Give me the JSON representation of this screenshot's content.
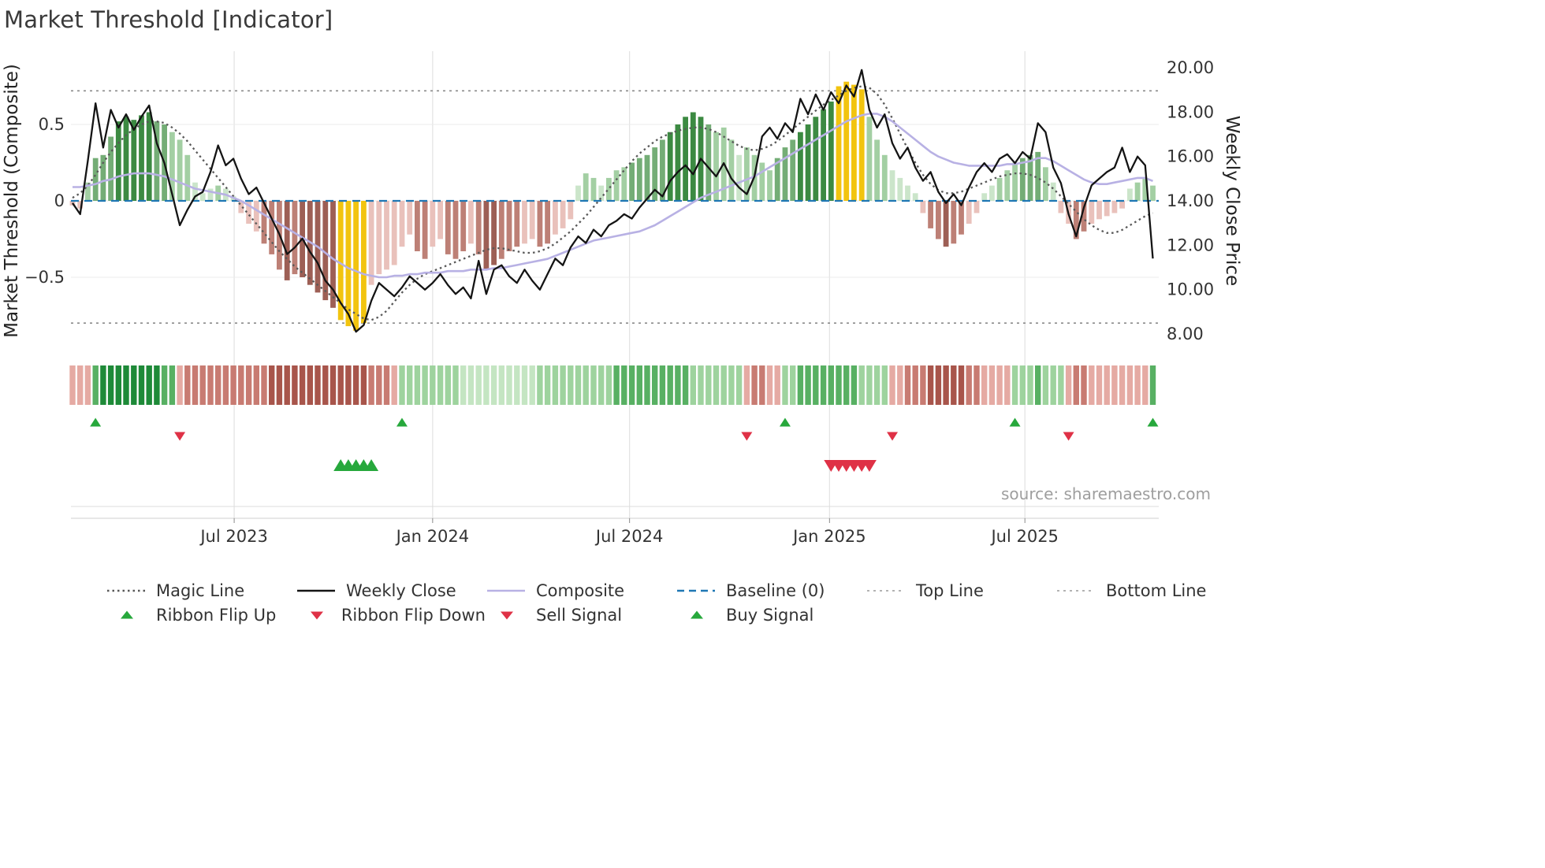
{
  "title": "Market Threshold [Indicator]",
  "source": "source: sharemaestro.com",
  "axes": {
    "left_label": "Market Threshold (Composite)",
    "right_label": "Weekly Close Price",
    "left_ticks": [
      0.5,
      0,
      -0.5
    ],
    "left_tick_labels": [
      "0.5",
      "0",
      "−0.5"
    ],
    "right_ticks": [
      20,
      18,
      16,
      14,
      12,
      10,
      8
    ],
    "right_tick_labels": [
      "20.00",
      "18.00",
      "16.00",
      "14.00",
      "12.00",
      "10.00",
      "8.00"
    ],
    "x_tick_labels": [
      "Jul 2023",
      "Jan 2024",
      "Jul 2024",
      "Jan 2025",
      "Jul 2025"
    ],
    "x_tick_weeks": [
      21.1,
      47,
      72.7,
      98.8,
      124.3
    ]
  },
  "colors": {
    "weekly_close": "#141414",
    "composite": "#b8b1e4",
    "magic_line": "#595959",
    "baseline": "#1f77b4",
    "top_bottom_line": "#8a8a8a",
    "grid": "#e2e2e2",
    "signal_green": "#27a83c",
    "signal_red": "#df3146",
    "bar_palette": {
      "dg": "#3c8a42",
      "mg": "#74ad76",
      "lg": "#a3cfa3",
      "pg": "#cbe5ca",
      "gd": "#f2c40f",
      "pp": "#e9c1bb",
      "mr": "#bd8076",
      "dr": "#9d5f55"
    },
    "ribbon_palette": {
      "dg": "#1e8a38",
      "mg": "#58b063",
      "lg": "#9ed39e",
      "pg": "#c4e5c2",
      "pp": "#e5aaa3",
      "mr": "#c87b72",
      "dr": "#a8554b"
    }
  },
  "chart_data": {
    "type": "combo: bar histogram (left axis) + line series + ribbon strip + signal markers",
    "n_points": 142,
    "x_unit": "weekly closes, Feb 2023 – Oct 2025",
    "left_axis_range": [
      -0.9,
      0.9
    ],
    "right_axis_range": [
      7.5,
      20.5
    ],
    "baseline": 0,
    "top_line": 0.72,
    "bottom_line": -0.8,
    "threshold_bars": {
      "name": "Market Threshold",
      "axis": "left",
      "values": [
        -0.03,
        -0.05,
        0.12,
        0.28,
        0.3,
        0.42,
        0.52,
        0.55,
        0.53,
        0.56,
        0.58,
        0.52,
        0.5,
        0.45,
        0.4,
        0.3,
        0.12,
        0.05,
        0.08,
        0.1,
        0.08,
        0.03,
        -0.08,
        -0.15,
        -0.2,
        -0.28,
        -0.35,
        -0.45,
        -0.52,
        -0.48,
        -0.5,
        -0.55,
        -0.6,
        -0.65,
        -0.7,
        -0.78,
        -0.82,
        -0.85,
        -0.8,
        -0.55,
        -0.48,
        -0.45,
        -0.42,
        -0.3,
        -0.22,
        -0.33,
        -0.38,
        -0.3,
        -0.25,
        -0.35,
        -0.38,
        -0.33,
        -0.28,
        -0.35,
        -0.45,
        -0.42,
        -0.38,
        -0.33,
        -0.3,
        -0.28,
        -0.25,
        -0.3,
        -0.28,
        -0.22,
        -0.18,
        -0.12,
        0.1,
        0.18,
        0.15,
        0.1,
        0.15,
        0.2,
        0.22,
        0.25,
        0.28,
        0.3,
        0.35,
        0.4,
        0.45,
        0.5,
        0.55,
        0.58,
        0.55,
        0.5,
        0.45,
        0.48,
        0.4,
        0.3,
        0.35,
        0.3,
        0.25,
        0.2,
        0.28,
        0.35,
        0.4,
        0.45,
        0.5,
        0.55,
        0.6,
        0.65,
        0.75,
        0.78,
        0.76,
        0.73,
        0.55,
        0.4,
        0.3,
        0.2,
        0.15,
        0.1,
        0.05,
        -0.08,
        -0.18,
        -0.25,
        -0.3,
        -0.28,
        -0.22,
        -0.15,
        -0.08,
        0.05,
        0.1,
        0.15,
        0.2,
        0.25,
        0.28,
        0.3,
        0.32,
        0.22,
        0.12,
        -0.08,
        -0.15,
        -0.25,
        -0.2,
        -0.15,
        -0.12,
        -0.1,
        -0.08,
        -0.05,
        0.08,
        0.12,
        0.15,
        0.1
      ],
      "colors": [
        "pp",
        "pp",
        "lg",
        "mg",
        "mg",
        "mg",
        "dg",
        "dg",
        "dg",
        "dg",
        "dg",
        "mg",
        "mg",
        "lg",
        "lg",
        "lg",
        "pg",
        "pg",
        "pg",
        "lg",
        "pg",
        "pg",
        "pp",
        "pp",
        "pp",
        "mr",
        "mr",
        "mr",
        "dr",
        "mr",
        "dr",
        "dr",
        "dr",
        "dr",
        "dr",
        "gd",
        "gd",
        "gd",
        "gd",
        "pp",
        "pp",
        "pp",
        "pp",
        "pp",
        "pp",
        "mr",
        "mr",
        "pp",
        "pp",
        "mr",
        "mr",
        "mr",
        "pp",
        "mr",
        "dr",
        "dr",
        "mr",
        "mr",
        "mr",
        "pp",
        "pp",
        "mr",
        "mr",
        "pp",
        "pp",
        "pp",
        "pg",
        "lg",
        "lg",
        "pg",
        "lg",
        "lg",
        "lg",
        "mg",
        "mg",
        "mg",
        "mg",
        "mg",
        "dg",
        "dg",
        "dg",
        "dg",
        "dg",
        "mg",
        "lg",
        "lg",
        "lg",
        "pg",
        "lg",
        "lg",
        "lg",
        "lg",
        "mg",
        "mg",
        "mg",
        "dg",
        "dg",
        "dg",
        "dg",
        "dg",
        "gd",
        "gd",
        "gd",
        "gd",
        "lg",
        "lg",
        "lg",
        "pg",
        "pg",
        "pg",
        "pg",
        "pp",
        "mr",
        "mr",
        "dr",
        "mr",
        "mr",
        "pp",
        "pp",
        "pg",
        "pg",
        "lg",
        "lg",
        "lg",
        "mg",
        "mg",
        "mg",
        "lg",
        "pg",
        "pp",
        "pp",
        "mr",
        "mr",
        "pp",
        "pp",
        "pp",
        "pp",
        "pp",
        "pg",
        "lg",
        "lg",
        "lg"
      ]
    },
    "weekly_close": {
      "name": "Weekly Close",
      "axis": "right",
      "values": [
        13.9,
        13.4,
        15.8,
        18.4,
        16.4,
        18.1,
        17.3,
        17.9,
        17.2,
        17.8,
        18.3,
        16.6,
        15.7,
        14.3,
        12.9,
        13.6,
        14.2,
        14.4,
        15.3,
        16.5,
        15.6,
        15.9,
        15.0,
        14.3,
        14.6,
        13.9,
        13.2,
        12.5,
        11.6,
        11.9,
        12.3,
        11.7,
        11.2,
        10.4,
        10.0,
        9.4,
        8.9,
        8.1,
        8.4,
        9.5,
        10.3,
        10.0,
        9.7,
        10.1,
        10.6,
        10.3,
        10.0,
        10.3,
        10.7,
        10.2,
        9.8,
        10.1,
        9.6,
        11.3,
        9.8,
        10.9,
        11.1,
        10.6,
        10.3,
        10.9,
        10.4,
        10.0,
        10.7,
        11.4,
        11.1,
        11.9,
        12.4,
        12.1,
        12.7,
        12.4,
        12.9,
        13.1,
        13.4,
        13.2,
        13.7,
        14.1,
        14.5,
        14.2,
        14.9,
        15.3,
        15.6,
        15.2,
        15.9,
        15.5,
        15.1,
        15.7,
        15.0,
        14.6,
        14.3,
        15.1,
        16.9,
        17.3,
        16.8,
        17.5,
        17.1,
        18.6,
        17.9,
        18.8,
        18.1,
        18.9,
        18.4,
        19.2,
        18.7,
        19.9,
        18.1,
        17.3,
        17.9,
        16.6,
        15.9,
        16.4,
        15.5,
        14.9,
        15.3,
        14.4,
        13.9,
        14.3,
        13.8,
        14.6,
        15.3,
        15.7,
        15.3,
        15.9,
        16.1,
        15.7,
        16.2,
        15.9,
        17.5,
        17.1,
        15.5,
        14.8,
        13.4,
        12.4,
        13.7,
        14.7,
        15.0,
        15.3,
        15.5,
        16.4,
        15.3,
        16.0,
        15.6,
        11.4
      ]
    },
    "composite": {
      "name": "Composite",
      "axis": "left",
      "values": [
        0.09,
        0.09,
        0.1,
        0.11,
        0.13,
        0.14,
        0.16,
        0.17,
        0.18,
        0.18,
        0.18,
        0.17,
        0.16,
        0.14,
        0.12,
        0.1,
        0.08,
        0.07,
        0.06,
        0.05,
        0.04,
        0.02,
        0.0,
        -0.03,
        -0.06,
        -0.09,
        -0.12,
        -0.15,
        -0.18,
        -0.21,
        -0.24,
        -0.27,
        -0.3,
        -0.34,
        -0.38,
        -0.41,
        -0.44,
        -0.46,
        -0.48,
        -0.49,
        -0.5,
        -0.5,
        -0.49,
        -0.49,
        -0.48,
        -0.48,
        -0.47,
        -0.47,
        -0.47,
        -0.46,
        -0.46,
        -0.46,
        -0.45,
        -0.45,
        -0.45,
        -0.44,
        -0.44,
        -0.43,
        -0.42,
        -0.41,
        -0.4,
        -0.39,
        -0.38,
        -0.36,
        -0.34,
        -0.32,
        -0.3,
        -0.28,
        -0.26,
        -0.25,
        -0.24,
        -0.23,
        -0.22,
        -0.21,
        -0.2,
        -0.18,
        -0.16,
        -0.13,
        -0.1,
        -0.07,
        -0.04,
        -0.01,
        0.02,
        0.04,
        0.06,
        0.08,
        0.1,
        0.12,
        0.14,
        0.16,
        0.19,
        0.22,
        0.25,
        0.28,
        0.31,
        0.34,
        0.37,
        0.4,
        0.43,
        0.46,
        0.49,
        0.52,
        0.54,
        0.56,
        0.57,
        0.57,
        0.55,
        0.52,
        0.48,
        0.44,
        0.4,
        0.36,
        0.32,
        0.29,
        0.27,
        0.25,
        0.24,
        0.23,
        0.23,
        0.23,
        0.23,
        0.23,
        0.24,
        0.24,
        0.25,
        0.26,
        0.28,
        0.28,
        0.26,
        0.23,
        0.2,
        0.17,
        0.14,
        0.12,
        0.11,
        0.11,
        0.12,
        0.13,
        0.14,
        0.15,
        0.15,
        0.13
      ]
    },
    "magic_line": {
      "name": "Magic Line",
      "axis": "left",
      "values": [
        0.02,
        0.05,
        0.1,
        0.17,
        0.25,
        0.32,
        0.38,
        0.43,
        0.47,
        0.5,
        0.52,
        0.52,
        0.51,
        0.48,
        0.44,
        0.39,
        0.33,
        0.27,
        0.21,
        0.15,
        0.09,
        0.03,
        -0.03,
        -0.09,
        -0.15,
        -0.21,
        -0.27,
        -0.33,
        -0.38,
        -0.43,
        -0.47,
        -0.51,
        -0.55,
        -0.59,
        -0.63,
        -0.67,
        -0.71,
        -0.74,
        -0.77,
        -0.78,
        -0.76,
        -0.72,
        -0.66,
        -0.6,
        -0.55,
        -0.51,
        -0.48,
        -0.46,
        -0.44,
        -0.42,
        -0.4,
        -0.38,
        -0.36,
        -0.34,
        -0.32,
        -0.31,
        -0.31,
        -0.32,
        -0.33,
        -0.34,
        -0.34,
        -0.33,
        -0.31,
        -0.28,
        -0.24,
        -0.2,
        -0.15,
        -0.1,
        -0.04,
        0.02,
        0.08,
        0.14,
        0.2,
        0.26,
        0.31,
        0.35,
        0.39,
        0.42,
        0.44,
        0.46,
        0.47,
        0.48,
        0.48,
        0.47,
        0.45,
        0.42,
        0.39,
        0.36,
        0.34,
        0.33,
        0.34,
        0.36,
        0.39,
        0.43,
        0.47,
        0.51,
        0.55,
        0.59,
        0.63,
        0.66,
        0.69,
        0.72,
        0.74,
        0.75,
        0.74,
        0.7,
        0.63,
        0.54,
        0.44,
        0.34,
        0.25,
        0.17,
        0.11,
        0.07,
        0.05,
        0.05,
        0.06,
        0.08,
        0.1,
        0.12,
        0.14,
        0.16,
        0.17,
        0.18,
        0.18,
        0.17,
        0.15,
        0.12,
        0.08,
        0.03,
        -0.02,
        -0.07,
        -0.12,
        -0.16,
        -0.19,
        -0.21,
        -0.21,
        -0.19,
        -0.16,
        -0.13,
        -0.1,
        -0.08
      ]
    },
    "ribbon": [
      "pp",
      "pp",
      "pp",
      "mg",
      "dg",
      "dg",
      "dg",
      "dg",
      "dg",
      "dg",
      "dg",
      "dg",
      "mg",
      "mg",
      "pp",
      "mr",
      "mr",
      "mr",
      "mr",
      "mr",
      "mr",
      "mr",
      "mr",
      "mr",
      "mr",
      "mr",
      "dr",
      "dr",
      "dr",
      "dr",
      "dr",
      "dr",
      "dr",
      "dr",
      "dr",
      "dr",
      "dr",
      "dr",
      "dr",
      "mr",
      "mr",
      "mr",
      "pp",
      "lg",
      "lg",
      "lg",
      "lg",
      "lg",
      "lg",
      "lg",
      "lg",
      "pg",
      "pg",
      "pg",
      "pg",
      "pg",
      "pg",
      "pg",
      "pg",
      "pg",
      "pg",
      "lg",
      "lg",
      "lg",
      "lg",
      "lg",
      "lg",
      "lg",
      "lg",
      "lg",
      "lg",
      "mg",
      "mg",
      "mg",
      "mg",
      "mg",
      "mg",
      "mg",
      "mg",
      "mg",
      "mg",
      "lg",
      "lg",
      "lg",
      "lg",
      "lg",
      "lg",
      "lg",
      "pp",
      "mr",
      "mr",
      "pp",
      "pp",
      "lg",
      "lg",
      "mg",
      "mg",
      "mg",
      "mg",
      "mg",
      "mg",
      "mg",
      "mg",
      "lg",
      "lg",
      "lg",
      "lg",
      "pp",
      "pp",
      "mr",
      "mr",
      "mr",
      "dr",
      "dr",
      "dr",
      "dr",
      "dr",
      "mr",
      "mr",
      "pp",
      "pp",
      "pp",
      "pp",
      "lg",
      "lg",
      "lg",
      "mg",
      "lg",
      "lg",
      "lg",
      "pp",
      "mr",
      "mr",
      "pp",
      "pp",
      "pp",
      "pp",
      "pp",
      "pp",
      "pp",
      "pp",
      "mg"
    ],
    "markers": {
      "ribbon_flip_up_weeks": [
        3,
        43,
        93,
        123,
        141
      ],
      "ribbon_flip_down_weeks": [
        14,
        88,
        107,
        130
      ],
      "buy_signal_weeks": [
        35,
        36,
        37,
        38,
        39
      ],
      "sell_signal_weeks": [
        99,
        100,
        101,
        102,
        103,
        104
      ]
    }
  },
  "legend": {
    "rows": [
      [
        {
          "label": "Magic Line",
          "type": "dotted",
          "color": "#595959",
          "icon": "magic-line-sample"
        },
        {
          "label": "Weekly Close",
          "type": "solid",
          "color": "#141414",
          "icon": "weekly-close-sample"
        },
        {
          "label": "Composite",
          "type": "solid",
          "color": "#b8b1e4",
          "icon": "composite-sample"
        },
        {
          "label": "Baseline (0)",
          "type": "dashed",
          "color": "#1f77b4",
          "icon": "baseline-sample"
        },
        {
          "label": "Top Line",
          "type": "fine-dashed",
          "color": "#9a9a9a",
          "icon": "top-line-sample"
        },
        {
          "label": "Bottom Line",
          "type": "fine-dashed",
          "color": "#9a9a9a",
          "icon": "bottom-line-sample"
        }
      ],
      [
        {
          "label": "Ribbon Flip Up",
          "type": "tri-up",
          "color": "#27a83c",
          "icon": "ribbon-flip-up-sample"
        },
        {
          "label": "Ribbon Flip Down",
          "type": "tri-down",
          "color": "#df3146",
          "icon": "ribbon-flip-down-sample"
        },
        {
          "label": "Sell Signal",
          "type": "tri-down",
          "color": "#df3146",
          "icon": "sell-signal-sample"
        },
        {
          "label": "Buy Signal",
          "type": "tri-up",
          "color": "#27a83c",
          "icon": "buy-signal-sample"
        }
      ]
    ]
  }
}
